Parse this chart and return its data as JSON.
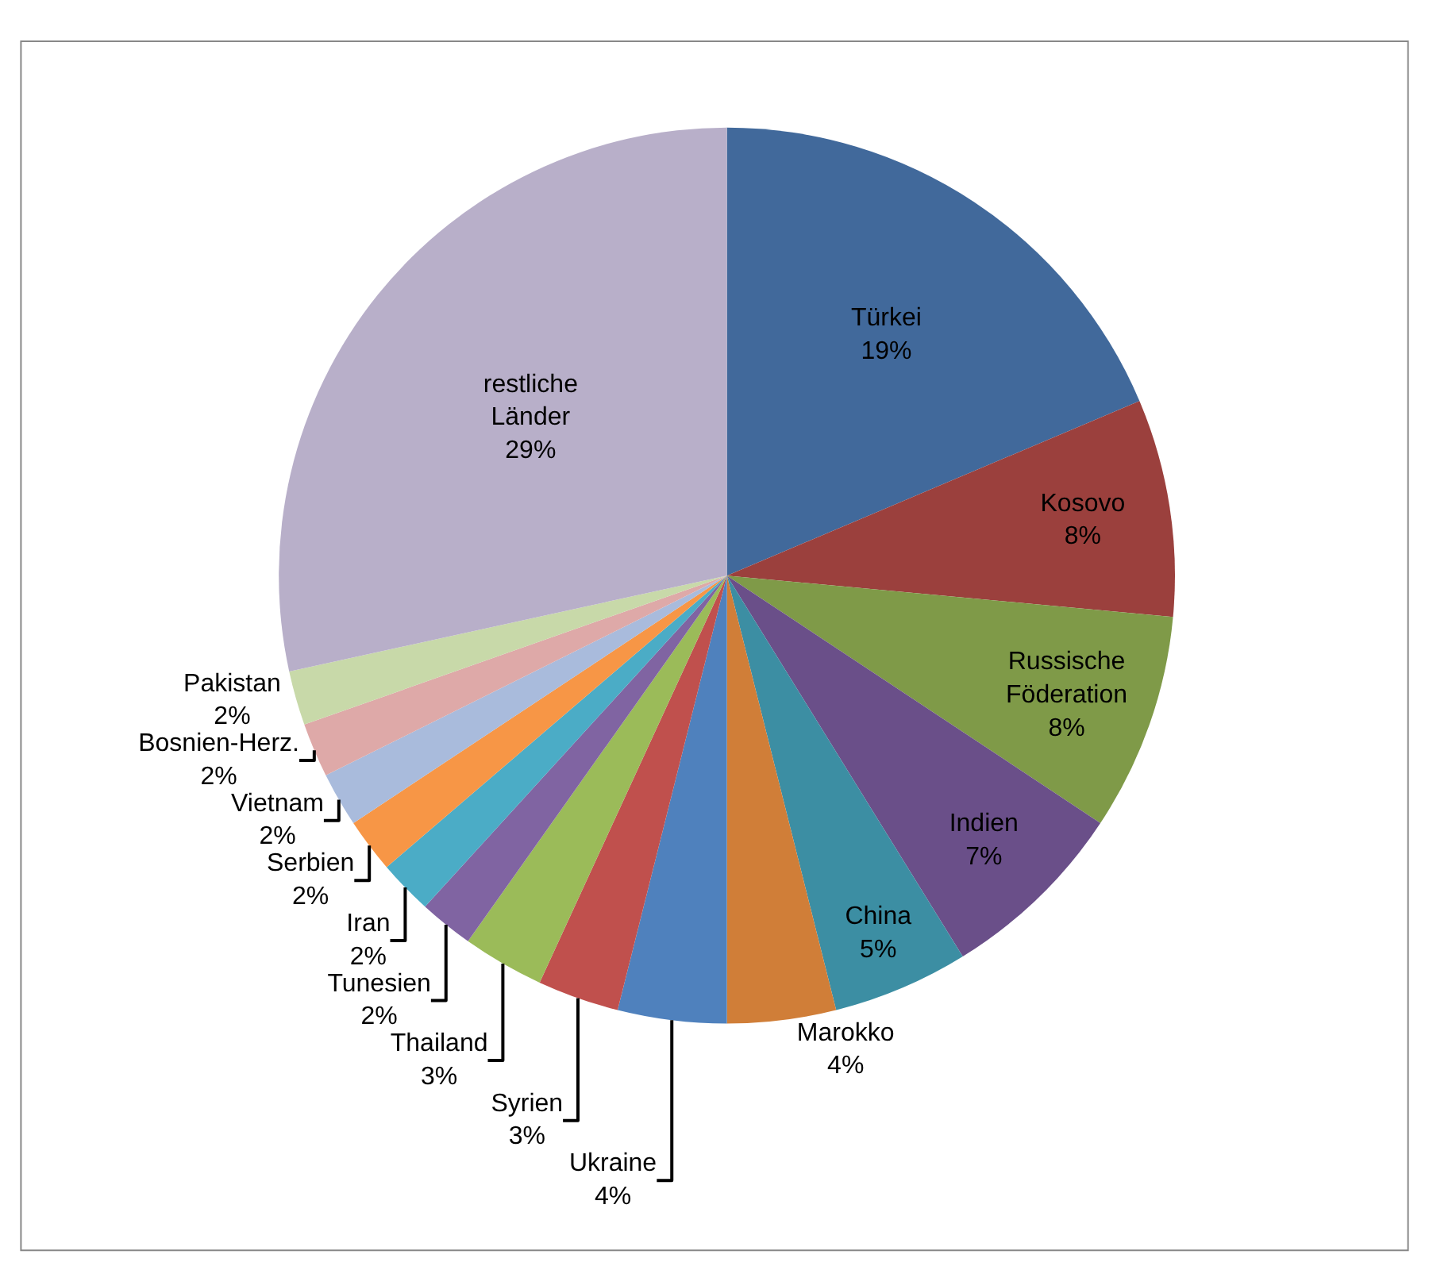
{
  "chart_data": {
    "type": "pie",
    "categories": [
      "Türkei",
      "Kosovo",
      "Russische Föderation",
      "Indien",
      "China",
      "Marokko",
      "Ukraine",
      "Syrien",
      "Thailand",
      "Tunesien",
      "Iran",
      "Serbien",
      "Vietnam",
      "Bosnien-Herz.",
      "Pakistan",
      "restliche Länder"
    ],
    "values": [
      19,
      8,
      8,
      7,
      5,
      4,
      4,
      3,
      3,
      2,
      2,
      2,
      2,
      2,
      2,
      29
    ],
    "value_labels": [
      "19%",
      "8%",
      "8%",
      "7%",
      "5%",
      "4%",
      "4%",
      "3%",
      "3%",
      "2%",
      "2%",
      "2%",
      "2%",
      "2%",
      "2%",
      "29%"
    ],
    "colors": [
      "#41699b",
      "#9b403d",
      "#7f9a48",
      "#6a4f89",
      "#3c8ea3",
      "#d07e38",
      "#4f81bd",
      "#c0504d",
      "#9bbb59",
      "#8064a2",
      "#4bacc6",
      "#f79646",
      "#a9bbdc",
      "#dea9a8",
      "#c8d9a9",
      "#b8afc9"
    ],
    "legend": false
  }
}
